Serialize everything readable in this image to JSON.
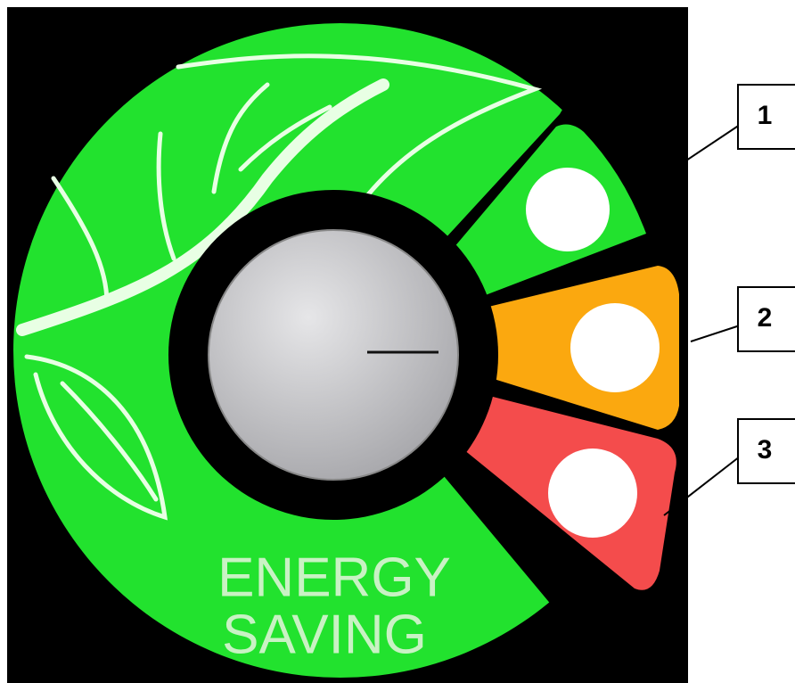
{
  "dial": {
    "text": [
      "ENERGY",
      "SAVING"
    ]
  },
  "callouts": [
    "1",
    "2",
    "3"
  ]
}
